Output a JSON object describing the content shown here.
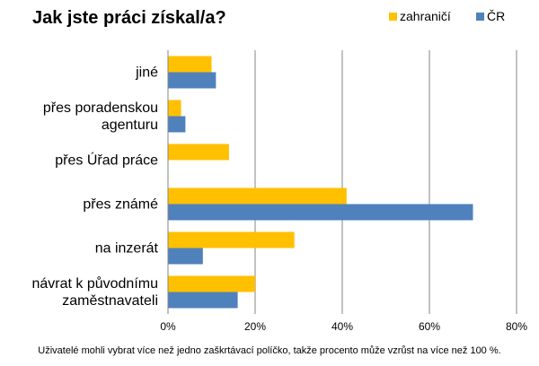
{
  "chart_data": {
    "type": "bar",
    "orientation": "horizontal",
    "title": "Jak jste práci získal/a?",
    "categories": [
      "jiné",
      "přes poradenskou agenturu",
      "přes Úřad práce",
      "přes známé",
      "na inzerát",
      "návrat k původnímu zaměstnavateli"
    ],
    "category_lines": [
      [
        "jiné"
      ],
      [
        "přes poradenskou",
        "agenturu"
      ],
      [
        "přes Úřad práce"
      ],
      [
        "přes známé"
      ],
      [
        "na inzerát"
      ],
      [
        "návrat k původnímu",
        "zaměstnavateli"
      ]
    ],
    "series": [
      {
        "name": "zahraničí",
        "color": "#FFC000",
        "values": [
          10,
          3,
          14,
          41,
          29,
          20
        ]
      },
      {
        "name": "ČR",
        "color": "#4F81BD",
        "values": [
          11,
          4,
          0,
          70,
          8,
          16
        ]
      }
    ],
    "xlim": [
      0,
      80
    ],
    "xticks": [
      "0%",
      "20%",
      "40%",
      "60%",
      "80%"
    ],
    "grid": true,
    "legend_position": "top-right",
    "footnote": "Uživatelé mohli vybrat více než jedno zaškrtávací políčko, takže procento může vzrůst na více než 100 %."
  }
}
